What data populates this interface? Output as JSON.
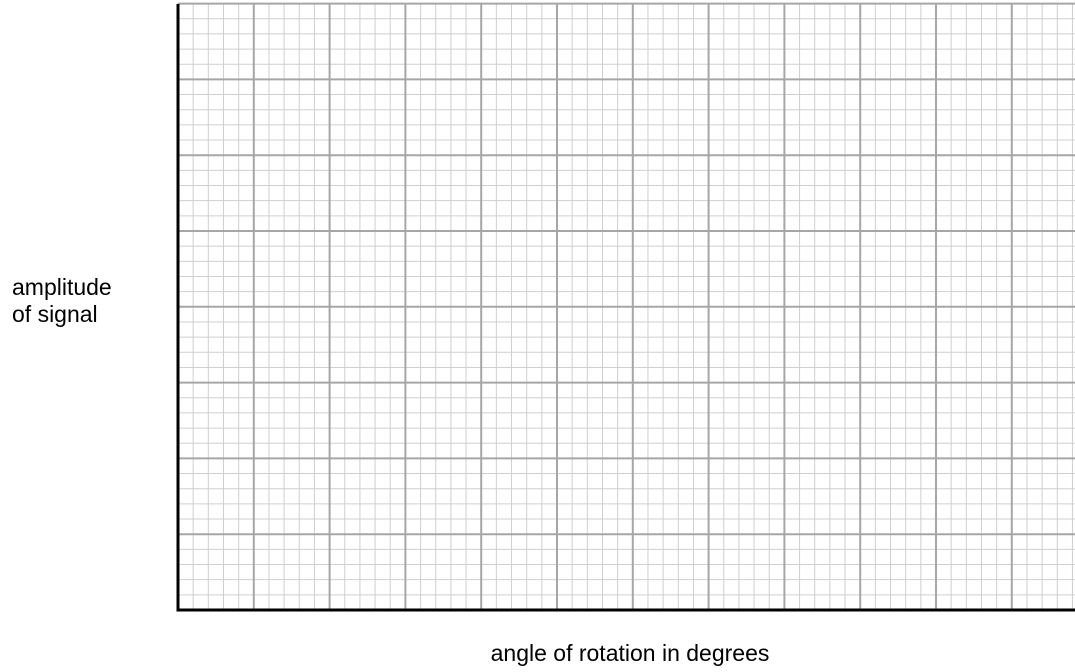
{
  "chart_data": {
    "type": "line",
    "title": "",
    "xlabel": "angle of rotation in degrees",
    "ylabel_lines": [
      "amplitude",
      "of signal"
    ],
    "series": [],
    "grid": {
      "major": true,
      "minor": true,
      "minor_per_major": 5
    },
    "axes_color": "#000000",
    "major_grid_color": "#a6a6a6",
    "minor_grid_color": "#cfcfcf"
  }
}
